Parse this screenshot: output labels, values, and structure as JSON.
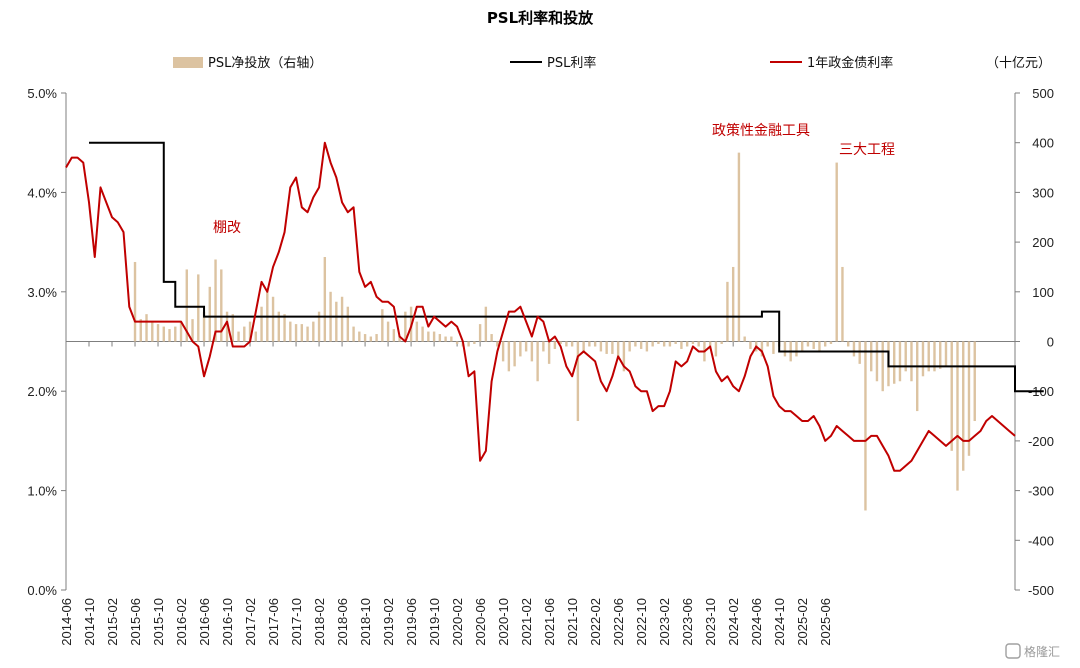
{
  "chart_data": {
    "type": "bar+line",
    "title": "PSL利率和投放",
    "y_left_ticks": [
      "5.0%",
      "4.0%",
      "3.0%",
      "2.0%",
      "1.0%",
      "0.0%"
    ],
    "y_left_lim": [
      0,
      5
    ],
    "y_right_ticks": [
      "500",
      "400",
      "300",
      "200",
      "100",
      "0",
      "-100",
      "-200",
      "-300",
      "-400",
      "-500"
    ],
    "y_right_lim": [
      -500,
      500
    ],
    "y_right_unit": "（十亿元）",
    "x_start": "2014-06",
    "x_tick_labels": [
      "2014-06",
      "2014-10",
      "2015-02",
      "2015-06",
      "2015-10",
      "2016-02",
      "2016-06",
      "2016-10",
      "2017-02",
      "2017-06",
      "2017-10",
      "2018-02",
      "2018-06",
      "2018-10",
      "2019-02",
      "2019-06",
      "2019-10",
      "2020-02",
      "2020-06",
      "2020-10",
      "2021-02",
      "2021-06",
      "2021-10",
      "2022-02",
      "2022-06",
      "2022-10",
      "2023-02",
      "2023-06",
      "2023-10",
      "2024-02",
      "2024-06",
      "2024-10",
      "2025-02",
      "2025-06"
    ],
    "legend": [
      "PSL净投放（右轴）",
      "PSL利率",
      "1年政金债利率"
    ],
    "colors": {
      "bar": "#dcc3a1",
      "psl_rate": "#000000",
      "bond_rate": "#c00000"
    },
    "annotations": [
      "棚改",
      "政策性金融工具",
      "三大工程"
    ],
    "psl_net_injection": [
      0,
      0,
      0,
      0,
      0,
      0,
      0,
      0,
      0,
      0,
      0,
      0,
      160,
      45,
      55,
      40,
      35,
      30,
      25,
      30,
      40,
      145,
      45,
      135,
      60,
      110,
      165,
      145,
      60,
      55,
      20,
      30,
      40,
      20,
      70,
      100,
      90,
      60,
      55,
      40,
      35,
      35,
      30,
      40,
      60,
      170,
      100,
      80,
      90,
      70,
      30,
      20,
      15,
      10,
      15,
      65,
      40,
      25,
      10,
      60,
      70,
      40,
      30,
      20,
      20,
      15,
      10,
      10,
      -5,
      -10,
      -10,
      -5,
      35,
      70,
      15,
      -10,
      -40,
      -60,
      -50,
      -30,
      -20,
      -40,
      -80,
      -20,
      -45,
      -15,
      -5,
      -10,
      -10,
      -160,
      -20,
      -10,
      -10,
      -20,
      -25,
      -25,
      -35,
      -60,
      -20,
      -10,
      -15,
      -20,
      -10,
      -5,
      -10,
      -10,
      -5,
      -15,
      -10,
      -5,
      -10,
      -40,
      -10,
      -30,
      -5,
      120,
      150,
      380,
      10,
      -15,
      -20,
      -30,
      -10,
      -25,
      -10,
      -30,
      -40,
      -30,
      -20,
      -10,
      -15,
      -20,
      -10,
      -5,
      360,
      150,
      -10,
      -30,
      -45,
      -340,
      -60,
      -80,
      -100,
      -90,
      -85,
      -80,
      -60,
      -80,
      -140,
      -70,
      -60,
      -60,
      -55,
      -50,
      -220,
      -300,
      -260,
      -230,
      -160
    ],
    "psl_rate": [
      null,
      null,
      null,
      null,
      4.5,
      4.5,
      4.5,
      4.5,
      4.5,
      4.5,
      4.5,
      4.5,
      4.5,
      4.5,
      4.5,
      4.5,
      4.5,
      3.1,
      3.1,
      2.85,
      2.85,
      2.85,
      2.85,
      2.85,
      2.75,
      2.75,
      2.75,
      2.75,
      2.75,
      2.75,
      2.75,
      2.75,
      2.75,
      2.75,
      2.75,
      2.75,
      2.75,
      2.75,
      2.75,
      2.75,
      2.75,
      2.75,
      2.75,
      2.75,
      2.75,
      2.75,
      2.75,
      2.75,
      2.75,
      2.75,
      2.75,
      2.75,
      2.75,
      2.75,
      2.75,
      2.75,
      2.75,
      2.75,
      2.75,
      2.75,
      2.75,
      2.75,
      2.75,
      2.75,
      2.75,
      2.75,
      2.75,
      2.75,
      2.75,
      2.75,
      2.75,
      2.75,
      2.75,
      2.75,
      2.75,
      2.75,
      2.75,
      2.75,
      2.75,
      2.75,
      2.75,
      2.75,
      2.75,
      2.75,
      2.75,
      2.75,
      2.75,
      2.75,
      2.75,
      2.75,
      2.75,
      2.75,
      2.75,
      2.75,
      2.75,
      2.75,
      2.75,
      2.75,
      2.75,
      2.75,
      2.75,
      2.75,
      2.75,
      2.75,
      2.75,
      2.75,
      2.75,
      2.75,
      2.75,
      2.75,
      2.75,
      2.75,
      2.75,
      2.75,
      2.75,
      2.75,
      2.75,
      2.75,
      2.75,
      2.75,
      2.75,
      2.8,
      2.8,
      2.8,
      2.4,
      2.4,
      2.4,
      2.4,
      2.4,
      2.4,
      2.4,
      2.4,
      2.4,
      2.4,
      2.4,
      2.4,
      2.4,
      2.4,
      2.4,
      2.4,
      2.4,
      2.4,
      2.4,
      2.25,
      2.25,
      2.25,
      2.25,
      2.25,
      2.25,
      2.25,
      2.25,
      2.25,
      2.25,
      2.25,
      2.25,
      2.25,
      2.25,
      2.25,
      2.25,
      2.25,
      2.25,
      2.25,
      2.25,
      2.25,
      2.25,
      2.0,
      2.0,
      2.0,
      2.0,
      2.0,
      2.0
    ],
    "bond_rate": [
      4.25,
      4.35,
      4.35,
      4.3,
      3.9,
      3.35,
      4.05,
      3.9,
      3.75,
      3.7,
      3.6,
      2.85,
      2.7,
      2.7,
      2.7,
      2.7,
      2.7,
      2.7,
      2.7,
      2.7,
      2.7,
      2.6,
      2.5,
      2.45,
      2.15,
      2.35,
      2.6,
      2.6,
      2.7,
      2.45,
      2.45,
      2.45,
      2.5,
      2.8,
      3.1,
      3.0,
      3.25,
      3.4,
      3.6,
      4.05,
      4.15,
      3.85,
      3.8,
      3.95,
      4.05,
      4.5,
      4.3,
      4.15,
      3.9,
      3.8,
      3.85,
      3.2,
      3.05,
      3.1,
      2.95,
      2.9,
      2.9,
      2.85,
      2.55,
      2.5,
      2.65,
      2.85,
      2.85,
      2.65,
      2.75,
      2.7,
      2.65,
      2.7,
      2.65,
      2.5,
      2.15,
      2.2,
      1.3,
      1.4,
      2.1,
      2.4,
      2.6,
      2.8,
      2.8,
      2.85,
      2.7,
      2.55,
      2.75,
      2.7,
      2.5,
      2.55,
      2.45,
      2.25,
      2.15,
      2.35,
      2.4,
      2.35,
      2.3,
      2.1,
      2.0,
      2.15,
      2.35,
      2.25,
      2.2,
      2.05,
      2.0,
      2.0,
      1.8,
      1.85,
      1.85,
      2.0,
      2.3,
      2.25,
      2.3,
      2.45,
      2.4,
      2.4,
      2.45,
      2.2,
      2.1,
      2.15,
      2.05,
      2.0,
      2.15,
      2.35,
      2.45,
      2.4,
      2.25,
      1.95,
      1.85,
      1.8,
      1.8,
      1.75,
      1.7,
      1.7,
      1.75,
      1.65,
      1.5,
      1.55,
      1.65,
      1.6,
      1.55,
      1.5,
      1.5,
      1.5,
      1.55,
      1.55,
      1.45,
      1.35,
      1.2,
      1.2,
      1.25,
      1.3,
      1.4,
      1.5,
      1.6,
      1.55,
      1.5,
      1.45,
      1.5,
      1.55,
      1.5,
      1.5,
      1.55,
      1.6,
      1.7,
      1.75,
      1.7,
      1.65,
      1.6,
      1.55
    ]
  },
  "watermark": "格隆汇"
}
